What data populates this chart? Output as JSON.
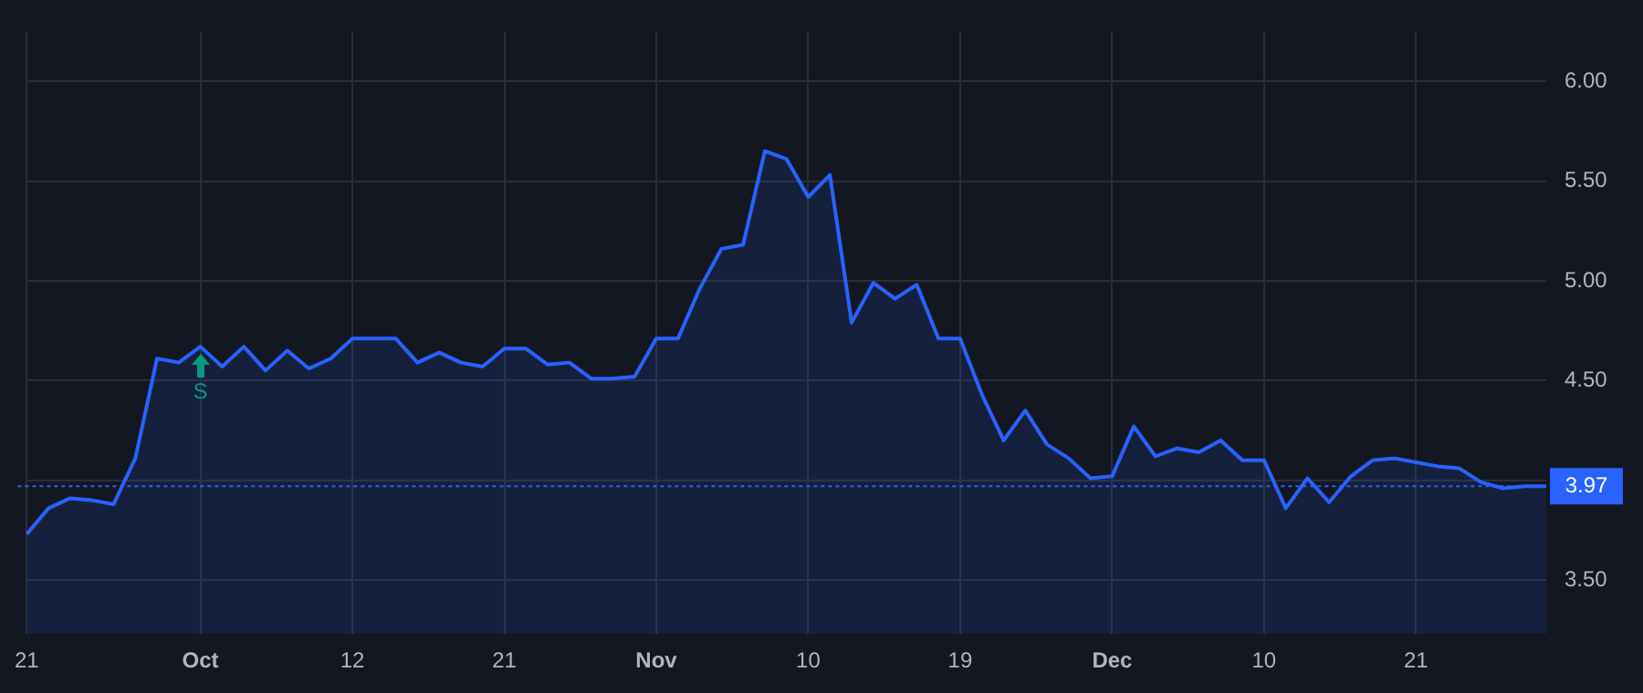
{
  "chart_data": {
    "type": "area",
    "categories": [
      "21",
      null,
      null,
      null,
      null,
      null,
      null,
      null,
      "Oct",
      null,
      null,
      null,
      null,
      null,
      null,
      "12",
      null,
      null,
      null,
      null,
      null,
      null,
      "21",
      null,
      null,
      null,
      null,
      null,
      null,
      "Nov",
      null,
      null,
      null,
      null,
      null,
      null,
      "10",
      null,
      null,
      null,
      null,
      null,
      null,
      "19",
      null,
      null,
      null,
      null,
      null,
      null,
      "Dec",
      null,
      null,
      null,
      null,
      null,
      null,
      "10",
      null,
      null,
      null,
      null,
      null,
      null,
      "21",
      null,
      null,
      null,
      null,
      null,
      null
    ],
    "series": [
      {
        "color": "#2962ff",
        "values": [
          3.73,
          3.86,
          3.91,
          3.9,
          3.88,
          4.11,
          4.61,
          4.59,
          4.67,
          4.57,
          4.67,
          4.55,
          4.65,
          4.56,
          4.61,
          4.71,
          4.71,
          4.71,
          4.59,
          4.64,
          4.59,
          4.57,
          4.66,
          4.66,
          4.58,
          4.59,
          4.51,
          4.51,
          4.52,
          4.71,
          4.71,
          4.96,
          5.16,
          5.18,
          5.65,
          5.61,
          5.42,
          5.53,
          4.79,
          4.99,
          4.91,
          4.98,
          4.71,
          4.71,
          4.43,
          4.2,
          4.35,
          4.18,
          4.11,
          4.01,
          4.02,
          4.27,
          4.12,
          4.16,
          4.14,
          4.2,
          4.1,
          4.1,
          3.86,
          4.01,
          3.89,
          4.02,
          4.1,
          4.11,
          4.09,
          4.07,
          4.06,
          3.99,
          3.96,
          3.97,
          3.97
        ]
      }
    ],
    "ylim": [
      3.23,
      6.25
    ],
    "yticks": [
      {
        "value": 3.5,
        "label": "3.50"
      },
      {
        "value": 4,
        "label": null
      },
      {
        "value": 4.5,
        "label": "4.50"
      },
      {
        "value": 5,
        "label": "5.00"
      },
      {
        "value": 5.5,
        "label": "5.50"
      },
      {
        "value": 6,
        "label": "6.00"
      }
    ],
    "ref_lines": [
      {
        "axis": "y",
        "value": 3.97,
        "label": "3.97",
        "color": "#2962ff",
        "line_style": "dotted"
      }
    ],
    "annotations": [
      {
        "text": "S",
        "x": "Oct",
        "y": 4.67
      }
    ],
    "grid": true,
    "legend": false,
    "marker": "none"
  }
}
